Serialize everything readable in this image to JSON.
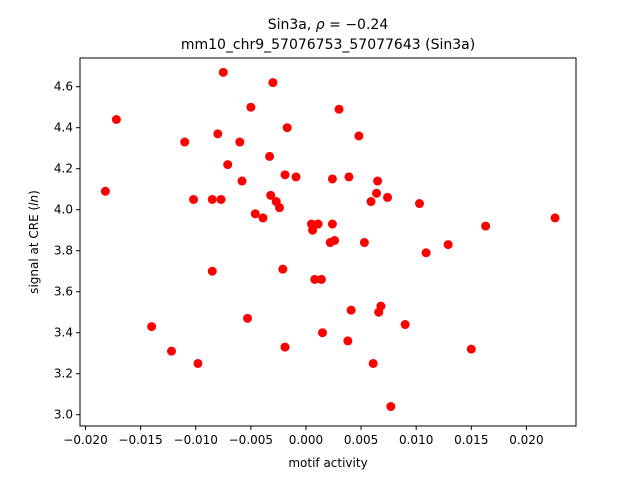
{
  "chart_data": {
    "type": "scatter",
    "title": "Sin3a, ρ = −0.24",
    "subtitle": "mm10_chr9_57076753_57077643 (Sin3a)",
    "xlabel": "motif activity",
    "ylabel": "signal at CRE (ln)",
    "xlim": [
      -0.0205,
      0.0245
    ],
    "ylim": [
      2.945,
      4.74
    ],
    "xticks": [
      -0.02,
      -0.015,
      -0.01,
      -0.005,
      0.0,
      0.005,
      0.01,
      0.015,
      0.02
    ],
    "xtick_labels": [
      "−0.020",
      "−0.015",
      "−0.010",
      "−0.005",
      "0.000",
      "0.005",
      "0.010",
      "0.015",
      "0.020"
    ],
    "yticks": [
      3.0,
      3.2,
      3.4,
      3.6,
      3.8,
      4.0,
      4.2,
      4.4,
      4.6
    ],
    "ytick_labels": [
      "3.0",
      "3.2",
      "3.4",
      "3.6",
      "3.8",
      "4.0",
      "4.2",
      "4.4",
      "4.6"
    ],
    "grid": false,
    "marker_color": "#ff0000",
    "points": [
      [
        -0.0182,
        4.09
      ],
      [
        -0.0172,
        4.44
      ],
      [
        -0.014,
        3.43
      ],
      [
        -0.0122,
        3.31
      ],
      [
        -0.011,
        4.33
      ],
      [
        -0.0102,
        4.05
      ],
      [
        -0.0098,
        3.25
      ],
      [
        -0.0085,
        3.7
      ],
      [
        -0.0085,
        4.05
      ],
      [
        -0.008,
        4.37
      ],
      [
        -0.0077,
        4.05
      ],
      [
        -0.0075,
        4.67
      ],
      [
        -0.0071,
        4.22
      ],
      [
        -0.006,
        4.33
      ],
      [
        -0.0058,
        4.14
      ],
      [
        -0.0053,
        3.47
      ],
      [
        -0.005,
        4.5
      ],
      [
        -0.0046,
        3.98
      ],
      [
        -0.0039,
        3.96
      ],
      [
        -0.0033,
        4.26
      ],
      [
        -0.0032,
        4.07
      ],
      [
        -0.003,
        4.62
      ],
      [
        -0.0027,
        4.04
      ],
      [
        -0.0024,
        4.01
      ],
      [
        -0.0021,
        3.71
      ],
      [
        -0.0019,
        4.17
      ],
      [
        -0.0019,
        3.33
      ],
      [
        -0.0017,
        4.4
      ],
      [
        -0.0009,
        4.16
      ],
      [
        0.0005,
        3.93
      ],
      [
        0.0006,
        3.9
      ],
      [
        0.0008,
        3.66
      ],
      [
        0.0011,
        3.93
      ],
      [
        0.0014,
        3.66
      ],
      [
        0.0015,
        3.4
      ],
      [
        0.0022,
        3.84
      ],
      [
        0.0024,
        4.15
      ],
      [
        0.0024,
        3.93
      ],
      [
        0.0026,
        3.85
      ],
      [
        0.003,
        4.49
      ],
      [
        0.0038,
        3.36
      ],
      [
        0.0039,
        4.16
      ],
      [
        0.0041,
        3.51
      ],
      [
        0.0048,
        4.36
      ],
      [
        0.0053,
        3.84
      ],
      [
        0.0059,
        4.04
      ],
      [
        0.0061,
        3.25
      ],
      [
        0.0064,
        4.08
      ],
      [
        0.0065,
        4.14
      ],
      [
        0.0066,
        3.5
      ],
      [
        0.0068,
        3.53
      ],
      [
        0.0074,
        4.06
      ],
      [
        0.0077,
        3.04
      ],
      [
        0.009,
        3.44
      ],
      [
        0.0103,
        4.03
      ],
      [
        0.0109,
        3.79
      ],
      [
        0.0129,
        3.83
      ],
      [
        0.015,
        3.32
      ],
      [
        0.0163,
        3.92
      ],
      [
        0.0226,
        3.96
      ]
    ]
  }
}
